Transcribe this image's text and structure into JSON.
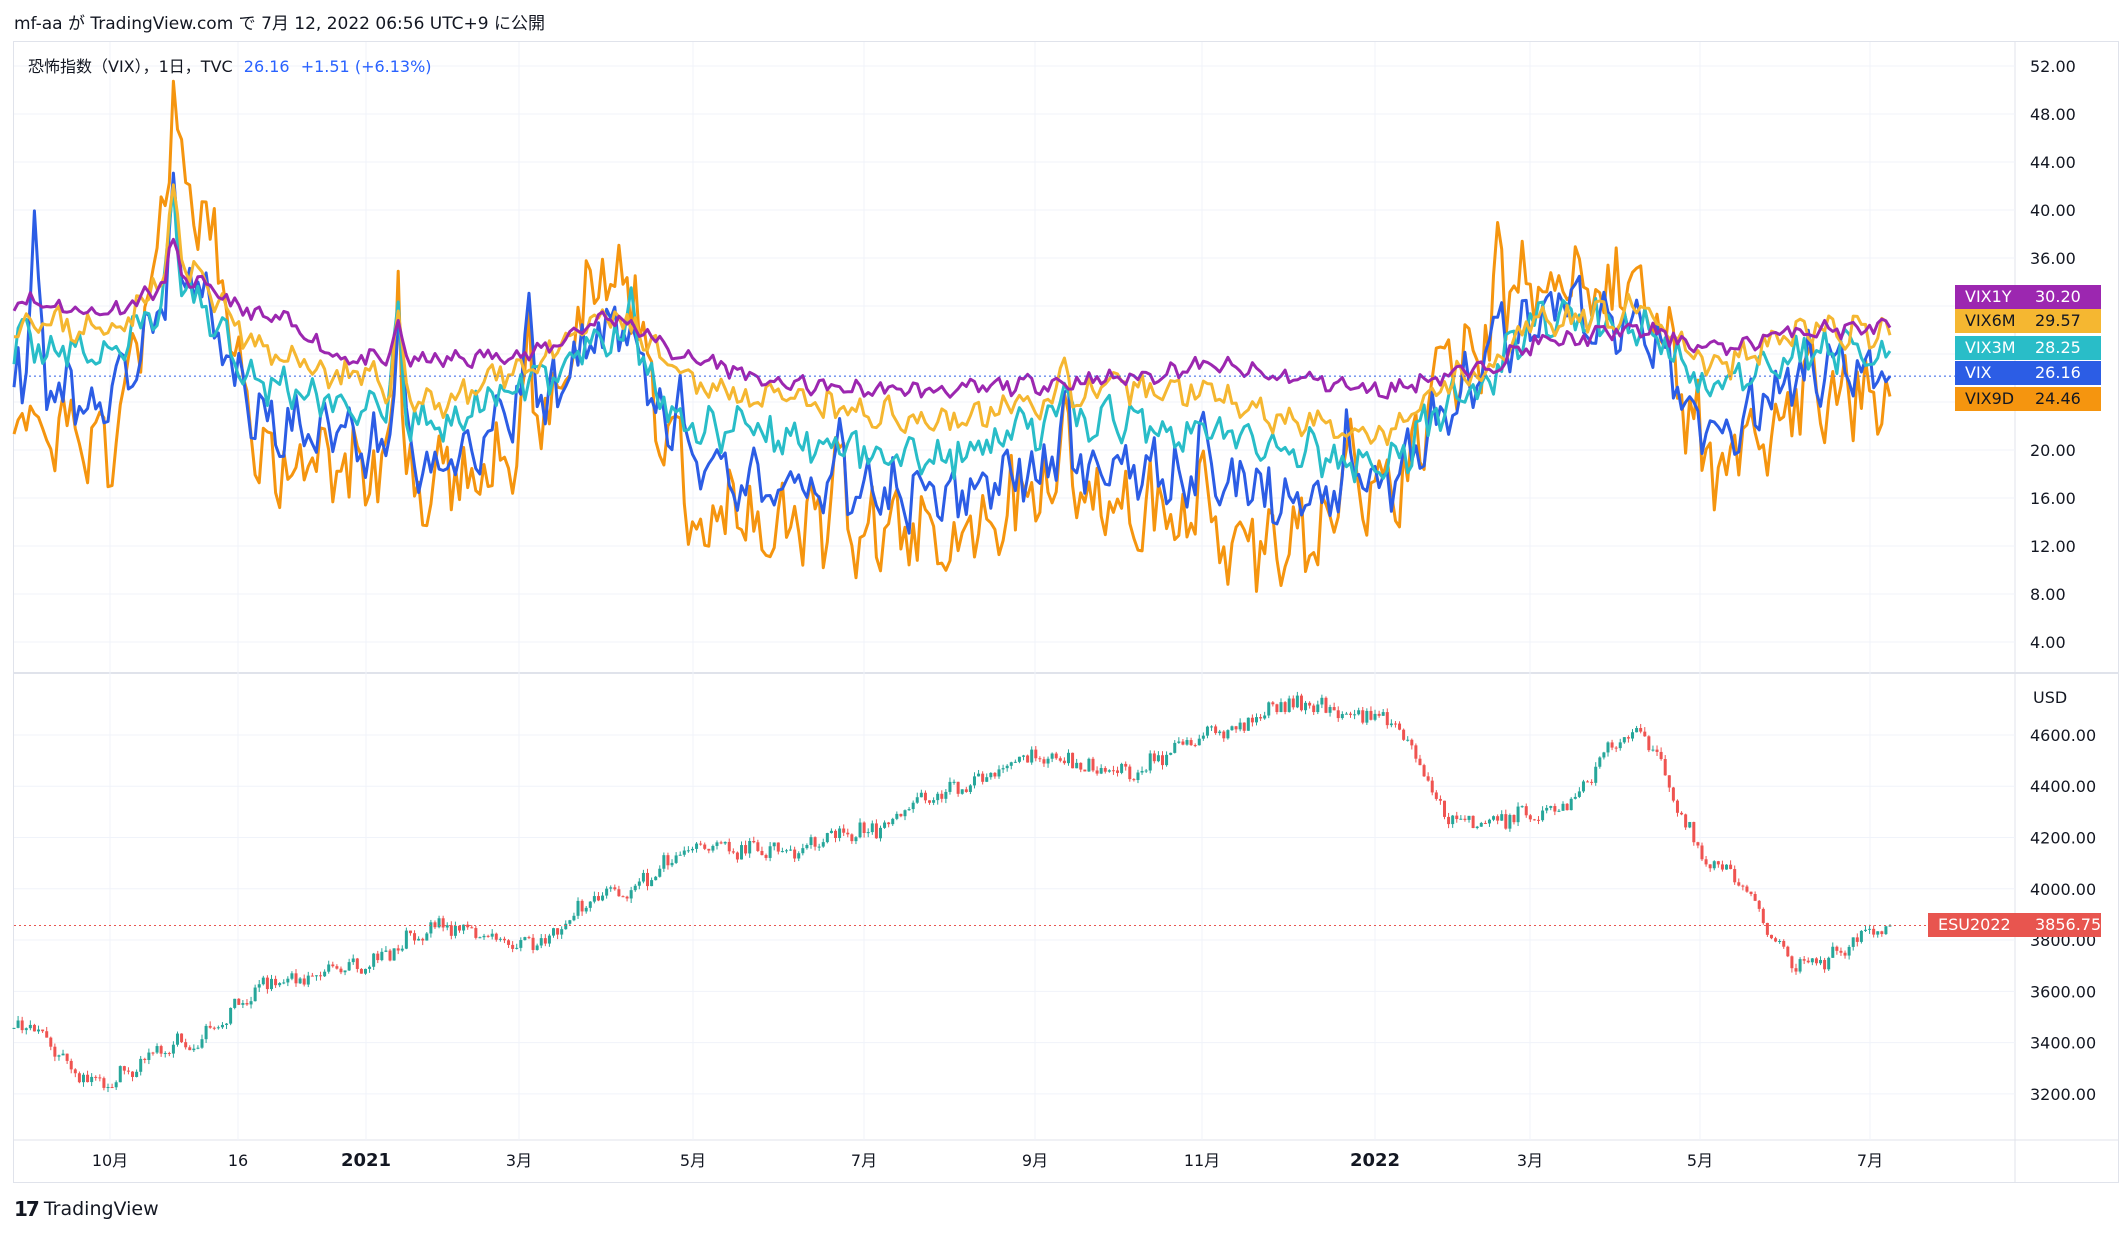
{
  "caption": "mf-aa が TradingView.com で 7月 12, 2022 06:56 UTC+9 に公開",
  "legend": {
    "symbol": "恐怖指数（VIX），1日，TVC",
    "value": "26.16",
    "change": "+1.51 (+6.13%)"
  },
  "footer": {
    "logo": "17",
    "brand": "TradingView"
  },
  "colors": {
    "VIX1Y": "#9c27b0",
    "VIX6M": "#f5b731",
    "VIX3M": "#29bdc8",
    "VIX": "#2c5de5",
    "VIX9D": "#f5950f",
    "up": "#26a69a",
    "down": "#ef5350",
    "es_tag": "#e8554f"
  },
  "chart_data": [
    {
      "type": "line",
      "title": "恐怖指数（VIX），1日，TVC",
      "x_tick_labels": [
        "10月",
        "16",
        "2021",
        "3月",
        "5月",
        "7月",
        "9月",
        "11月",
        "2022",
        "3月",
        "5月",
        "7月"
      ],
      "y_tick_labels": [
        "52.00",
        "48.00",
        "44.00",
        "40.00",
        "36.00",
        "32.00",
        "28.00",
        "24.00",
        "20.00",
        "16.00",
        "12.00",
        "8.00",
        "4.00"
      ],
      "ylim": [
        1.5,
        54
      ],
      "grid": true,
      "x_months": [
        "2020-09",
        "2020-10",
        "2020-11",
        "2020-12",
        "2021-01",
        "2021-02",
        "2021-03",
        "2021-04",
        "2021-05",
        "2021-06",
        "2021-07",
        "2021-08",
        "2021-09",
        "2021-10",
        "2021-11",
        "2021-12",
        "2022-01",
        "2022-02",
        "2022-03",
        "2022-04",
        "2022-05",
        "2022-06",
        "2022-07"
      ],
      "series": [
        {
          "name": "VIX1Y",
          "last": "30.20",
          "values": [
            32.5,
            31.5,
            34,
            31,
            27.5,
            27.5,
            28,
            31,
            27.5,
            25.5,
            25,
            25,
            25.5,
            26,
            27,
            26,
            25,
            26.5,
            29,
            30,
            28.5,
            30,
            30.2
          ]
        },
        {
          "name": "VIX6M",
          "last": "29.57",
          "values": [
            31,
            30,
            35,
            28,
            26,
            24,
            27,
            31,
            25.5,
            24,
            23,
            22.5,
            24,
            25,
            25,
            22.5,
            21,
            26,
            31,
            31.5,
            27,
            30,
            29.57
          ]
        },
        {
          "name": "VIX3M",
          "last": "28.25",
          "values": [
            29,
            28,
            33,
            25.5,
            23.5,
            22,
            25.5,
            29.5,
            22,
            21,
            20,
            19.5,
            22,
            22.5,
            21.5,
            20,
            18.5,
            24.5,
            31,
            30.5,
            25,
            28.5,
            28.25
          ]
        },
        {
          "name": "VIX",
          "last": "26.16",
          "values": [
            27,
            24,
            34,
            22,
            21,
            19,
            23,
            30,
            18,
            17,
            16.5,
            16,
            18.5,
            19,
            17,
            16,
            17,
            25,
            32,
            30,
            21,
            27,
            26.16
          ]
        },
        {
          "name": "VIX9D",
          "last": "24.46",
          "values": [
            23,
            20,
            42,
            19,
            18,
            17,
            20,
            35,
            14.5,
            14,
            13,
            12.5,
            16,
            15.5,
            13,
            12.5,
            16,
            28,
            35,
            33,
            19,
            25,
            24.46
          ]
        }
      ]
    },
    {
      "type": "candlestick",
      "series_name": "ESU2022",
      "last": "3856.75",
      "unit_label": "USD",
      "y_tick_labels": [
        "4600.00",
        "4400.00",
        "4200.00",
        "4000.00",
        "3800.00",
        "3600.00",
        "3400.00",
        "3200.00"
      ],
      "ylim": [
        3020,
        4830
      ],
      "grid": true,
      "x_months": [
        "2020-09",
        "2020-10",
        "2020-11",
        "2020-12",
        "2021-01",
        "2021-02",
        "2021-03",
        "2021-04",
        "2021-05",
        "2021-06",
        "2021-07",
        "2021-08",
        "2021-09",
        "2021-10",
        "2021-11",
        "2021-12",
        "2022-01",
        "2022-02",
        "2022-03",
        "2022-04",
        "2022-05",
        "2022-06",
        "2022-07"
      ],
      "close": [
        3480,
        3250,
        3400,
        3620,
        3700,
        3850,
        3780,
        3980,
        4150,
        4150,
        4230,
        4380,
        4520,
        4450,
        4600,
        4720,
        4680,
        4250,
        4300,
        4600,
        4080,
        3700,
        3856.75
      ]
    }
  ]
}
